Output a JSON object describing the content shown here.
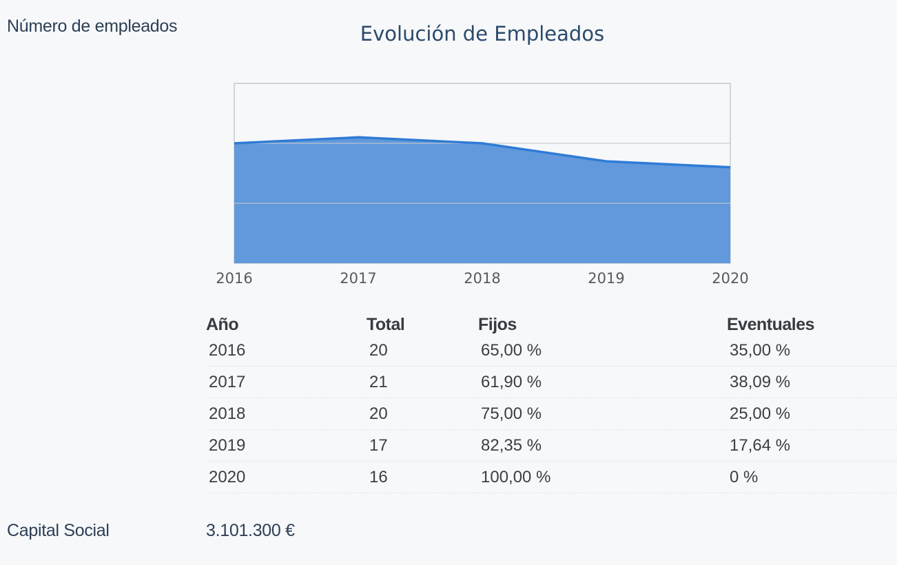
{
  "labels": {
    "empleados": "Número de empleados",
    "capital": "Capital Social"
  },
  "capital_value": "3.101.300 €",
  "colors": {
    "area_fill": "#6199dc",
    "area_line": "#2f7bd6",
    "title": "#2b4a6b"
  },
  "chart_data": {
    "type": "area",
    "title": "Evolución de Empleados",
    "xlabel": "",
    "ylabel": "",
    "x": [
      "2016",
      "2017",
      "2018",
      "2019",
      "2020"
    ],
    "series": [
      {
        "values": [
          20,
          21,
          20,
          17,
          16
        ]
      }
    ],
    "ylim": [
      0,
      30
    ],
    "grid": true,
    "legend": "none"
  },
  "table": {
    "headers": [
      "Año",
      "Total",
      "Fijos",
      "Eventuales"
    ],
    "rows": [
      [
        "2016",
        "20",
        "65,00 %",
        "35,00 %"
      ],
      [
        "2017",
        "21",
        "61,90 %",
        "38,09 %"
      ],
      [
        "2018",
        "20",
        "75,00 %",
        "25,00 %"
      ],
      [
        "2019",
        "17",
        "82,35 %",
        "17,64 %"
      ],
      [
        "2020",
        "16",
        "100,00 %",
        "0 %"
      ]
    ]
  }
}
